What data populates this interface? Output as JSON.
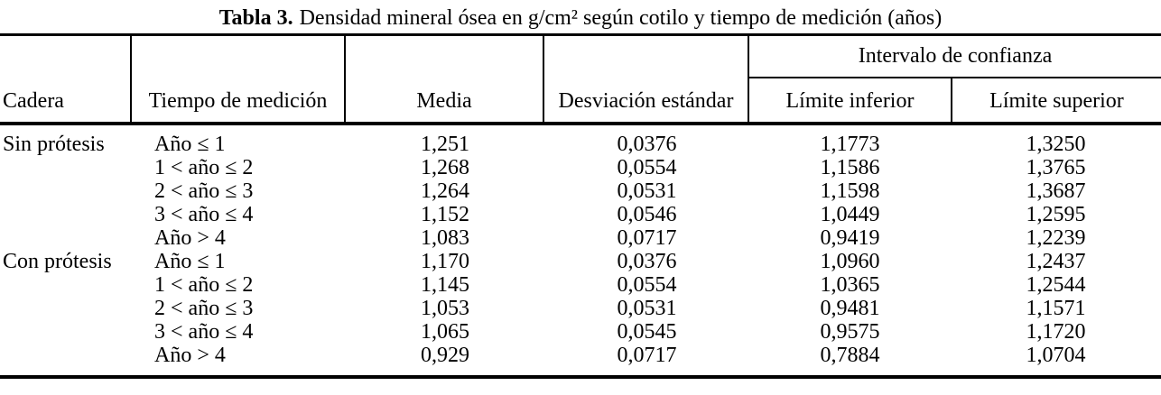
{
  "caption": {
    "label": "Tabla 3.",
    "text": "Densidad mineral ósea en g/cm² según cotilo y tiempo de medición (años)"
  },
  "header": {
    "cadera": "Cadera",
    "tiempo": "Tiempo de medición",
    "media": "Media",
    "desviacion": "Desviación estándar",
    "intervalo": "Intervalo de confianza",
    "limite_inferior": "Límite inferior",
    "limite_superior": "Límite superior"
  },
  "rows": [
    {
      "cadera": "Sin prótesis",
      "tiempo": "Año ≤ 1",
      "media": "1,251",
      "desviacion": "0,0376",
      "limite_inferior": "1,1773",
      "limite_superior": "1,3250"
    },
    {
      "cadera": "",
      "tiempo": "1 < año ≤ 2",
      "media": "1,268",
      "desviacion": "0,0554",
      "limite_inferior": "1,1586",
      "limite_superior": "1,3765"
    },
    {
      "cadera": "",
      "tiempo": "2 < año ≤ 3",
      "media": "1,264",
      "desviacion": "0,0531",
      "limite_inferior": "1,1598",
      "limite_superior": "1,3687"
    },
    {
      "cadera": "",
      "tiempo": "3 < año ≤ 4",
      "media": "1,152",
      "desviacion": "0,0546",
      "limite_inferior": "1,0449",
      "limite_superior": "1,2595"
    },
    {
      "cadera": "",
      "tiempo": "Año > 4",
      "media": "1,083",
      "desviacion": "0,0717",
      "limite_inferior": "0,9419",
      "limite_superior": "1,2239"
    },
    {
      "cadera": "Con prótesis",
      "tiempo": "Año ≤ 1",
      "media": "1,170",
      "desviacion": "0,0376",
      "limite_inferior": "1,0960",
      "limite_superior": "1,2437"
    },
    {
      "cadera": "",
      "tiempo": "1 < año ≤ 2",
      "media": "1,145",
      "desviacion": "0,0554",
      "limite_inferior": "1,0365",
      "limite_superior": "1,2544"
    },
    {
      "cadera": "",
      "tiempo": "2 < año ≤ 3",
      "media": "1,053",
      "desviacion": "0,0531",
      "limite_inferior": "0,9481",
      "limite_superior": "1,1571"
    },
    {
      "cadera": "",
      "tiempo": "3 < año ≤ 4",
      "media": "1,065",
      "desviacion": "0,0545",
      "limite_inferior": "0,9575",
      "limite_superior": "1,1720"
    },
    {
      "cadera": "",
      "tiempo": "Año > 4",
      "media": "0,929",
      "desviacion": "0,0717",
      "limite_inferior": "0,7884",
      "limite_superior": "1,0704"
    }
  ],
  "colors": {
    "text": "#000000",
    "background": "#ffffff",
    "rule": "#000000"
  }
}
